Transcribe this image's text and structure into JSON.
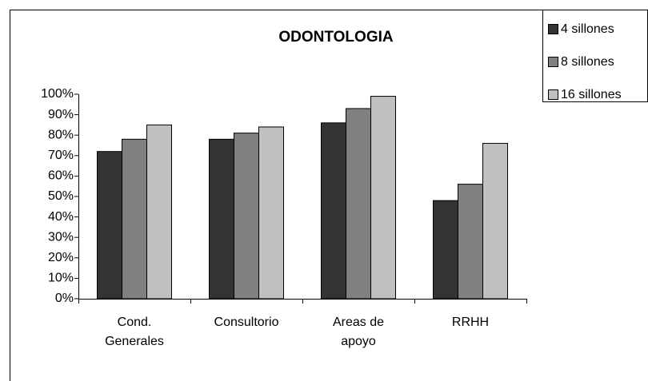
{
  "chart_data": {
    "type": "bar",
    "title": "ODONTOLOGIA",
    "categories": [
      "Cond.\nGenerales",
      "Consultorio",
      "Areas de\napoyo",
      "RRHH"
    ],
    "series": [
      {
        "name": "4 sillones",
        "color": "#333333",
        "values": [
          72,
          78,
          86,
          48
        ]
      },
      {
        "name": "8 sillones",
        "color": "#808080",
        "values": [
          78,
          81,
          93,
          56
        ]
      },
      {
        "name": "16 sillones",
        "color": "#c0c0c0",
        "values": [
          85,
          84,
          99,
          76
        ]
      }
    ],
    "ylim": [
      0,
      100
    ],
    "yticks": [
      {
        "value": 0,
        "label": "0%"
      },
      {
        "value": 10,
        "label": "10%"
      },
      {
        "value": 20,
        "label": "20%"
      },
      {
        "value": 30,
        "label": "30%"
      },
      {
        "value": 40,
        "label": "40%"
      },
      {
        "value": 50,
        "label": "50%"
      },
      {
        "value": 60,
        "label": "60%"
      },
      {
        "value": 70,
        "label": "70%"
      },
      {
        "value": 80,
        "label": "80%"
      },
      {
        "value": 90,
        "label": "90%"
      },
      {
        "value": 100,
        "label": "100%"
      }
    ],
    "legend": "upper right"
  }
}
